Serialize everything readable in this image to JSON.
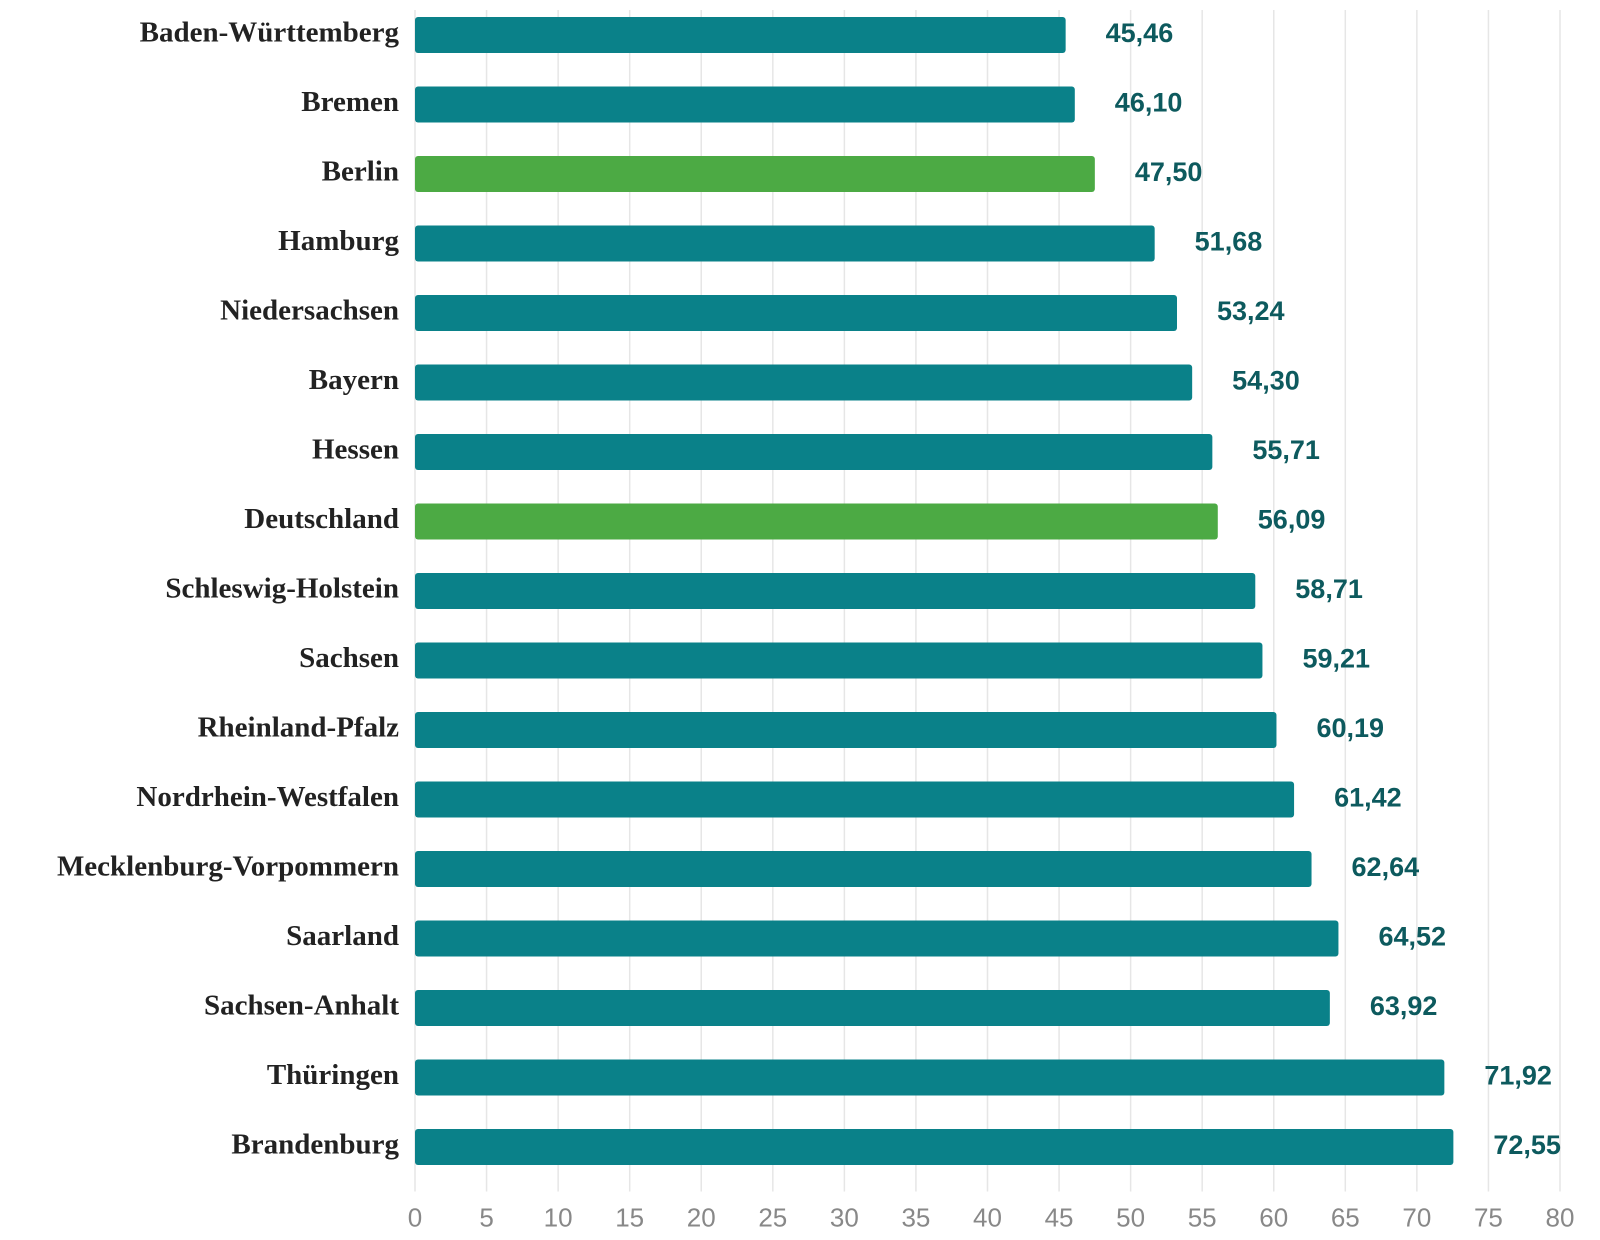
{
  "chart_data": {
    "type": "barh",
    "categories": [
      "Baden-Württemberg",
      "Bremen",
      "Berlin",
      "Hamburg",
      "Niedersachsen",
      "Bayern",
      "Hessen",
      "Deutschland",
      "Schleswig-Holstein",
      "Sachsen",
      "Rheinland-Pfalz",
      "Nordrhein-Westfalen",
      "Mecklenburg-Vorpommern",
      "Saarland",
      "Sachsen-Anhalt",
      "Thüringen",
      "Brandenburg"
    ],
    "values": [
      45.46,
      46.1,
      47.5,
      51.68,
      53.24,
      54.3,
      55.71,
      56.09,
      58.71,
      59.21,
      60.19,
      61.42,
      62.64,
      64.52,
      63.92,
      71.92,
      72.55
    ],
    "value_labels": [
      "45,46",
      "46,10",
      "47,50",
      "51,68",
      "53,24",
      "54,30",
      "55,71",
      "56,09",
      "58,71",
      "59,21",
      "60,19",
      "61,42",
      "62,64",
      "64,52",
      "63,92",
      "71,92",
      "72,55"
    ],
    "colors": [
      "#0a8189",
      "#0a8189",
      "#4caa44",
      "#0a8189",
      "#0a8189",
      "#0a8189",
      "#0a8189",
      "#4caa44",
      "#0a8189",
      "#0a8189",
      "#0a8189",
      "#0a8189",
      "#0a8189",
      "#0a8189",
      "#0a8189",
      "#0a8189",
      "#0a8189"
    ],
    "xlim": [
      0,
      80
    ],
    "xticks": [
      0,
      5,
      10,
      15,
      20,
      25,
      30,
      35,
      40,
      45,
      50,
      55,
      60,
      65,
      70,
      75,
      80
    ],
    "grid": true
  }
}
